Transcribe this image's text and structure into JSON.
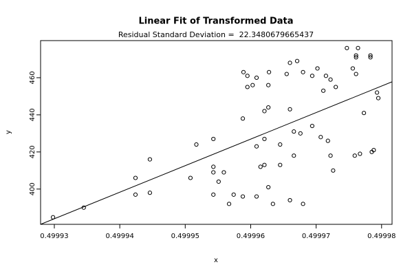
{
  "chart_data": {
    "type": "scatter",
    "title": "Linear Fit of Transformed Data",
    "subtitle": "Residual Standard Deviation =  22.3480679665437",
    "x_label": "x",
    "y_label": "y",
    "x": [
      0.4999298,
      0.4999345,
      0.4999424,
      0.4999424,
      0.4999446,
      0.4999446,
      0.4999508,
      0.4999517,
      0.4999543,
      0.4999543,
      0.4999543,
      0.4999543,
      0.4999551,
      0.4999559,
      0.4999567,
      0.4999574,
      0.4999588,
      0.4999588,
      0.4999589,
      0.4999595,
      0.4999595,
      0.4999603,
      0.4999609,
      0.4999609,
      0.4999609,
      0.4999615,
      0.4999621,
      0.4999621,
      0.4999621,
      0.4999627,
      0.4999627,
      0.4999627,
      0.4999628,
      0.4999634,
      0.4999645,
      0.4999645,
      0.4999655,
      0.499966,
      0.499966,
      0.499966,
      0.4999666,
      0.4999666,
      0.4999671,
      0.4999676,
      0.499968,
      0.499968,
      0.4999694,
      0.4999694,
      0.4999702,
      0.4999707,
      0.4999711,
      0.4999715,
      0.4999718,
      0.4999722,
      0.4999722,
      0.4999726,
      0.499973,
      0.4999747,
      0.4999756,
      0.4999759,
      0.4999761,
      0.4999761,
      0.4999761,
      0.4999764,
      0.4999767,
      0.4999773,
      0.4999783,
      0.4999783,
      0.4999785,
      0.4999788,
      0.4999793,
      0.4999795
    ],
    "values": [
      384.8,
      390,
      406,
      397,
      416,
      398,
      406,
      424,
      427,
      412,
      409,
      397,
      404,
      409,
      392,
      397,
      396,
      438,
      463,
      455,
      461,
      456,
      460,
      423,
      396,
      412,
      413,
      427,
      442,
      401,
      444,
      456,
      463,
      392,
      424,
      413,
      462,
      468,
      443,
      394,
      418,
      431,
      469,
      430,
      463,
      392,
      434,
      461,
      465,
      428,
      453,
      461,
      426,
      459,
      418,
      410,
      455,
      476,
      465,
      418,
      472,
      471,
      462,
      476,
      419,
      441,
      472,
      471,
      420,
      421,
      452,
      449
    ],
    "color": "#000000",
    "fit_line": {
      "x": [
        0.4999279,
        0.4999816
      ],
      "values": [
        381,
        457.8
      ],
      "color": "#000000"
    },
    "xlim": [
      0.4999279,
      0.4999816
    ],
    "ylim": [
      381,
      480
    ],
    "xticks": [
      0.49993,
      0.49994,
      0.49995,
      0.49996,
      0.49997,
      0.49998
    ],
    "yticks": [
      400,
      420,
      440,
      460
    ]
  }
}
